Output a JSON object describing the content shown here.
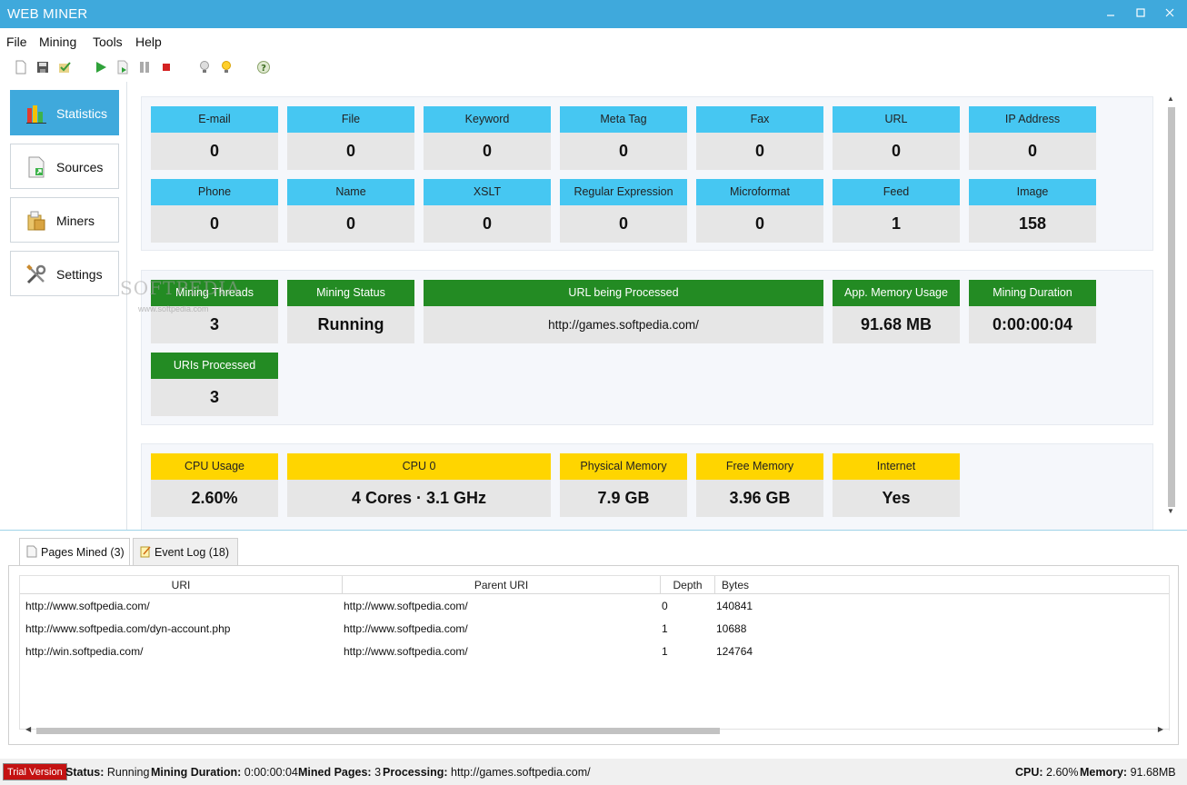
{
  "window": {
    "title": "WEB MINER"
  },
  "menu": [
    "File",
    "Mining",
    "Tools",
    "Help"
  ],
  "toolbar_icons": [
    "new-icon",
    "save-icon",
    "check-icon",
    "play-icon",
    "step-icon",
    "pause-icon",
    "stop-icon",
    "bulb-off-icon",
    "bulb-on-icon",
    "help-icon"
  ],
  "nav": [
    {
      "label": "Statistics",
      "icon": "bar-chart-icon",
      "active": true
    },
    {
      "label": "Sources",
      "icon": "document-icon",
      "active": false
    },
    {
      "label": "Miners",
      "icon": "miners-icon",
      "active": false
    },
    {
      "label": "Settings",
      "icon": "tools-icon",
      "active": false
    }
  ],
  "extracted": [
    {
      "label": "E-mail",
      "value": "0"
    },
    {
      "label": "File",
      "value": "0"
    },
    {
      "label": "Keyword",
      "value": "0"
    },
    {
      "label": "Meta Tag",
      "value": "0"
    },
    {
      "label": "Fax",
      "value": "0"
    },
    {
      "label": "URL",
      "value": "0"
    },
    {
      "label": "IP Address",
      "value": "0"
    },
    {
      "label": "Phone",
      "value": "0"
    },
    {
      "label": "Name",
      "value": "0"
    },
    {
      "label": "XSLT",
      "value": "0"
    },
    {
      "label": "Regular Expression",
      "value": "0"
    },
    {
      "label": "Microformat",
      "value": "0"
    },
    {
      "label": "Feed",
      "value": "1"
    },
    {
      "label": "Image",
      "value": "158"
    }
  ],
  "mining": {
    "threads_label": "Mining Threads",
    "threads_value": "3",
    "status_label": "Mining Status",
    "status_value": "Running",
    "url_label": "URL being Processed",
    "url_value": "http://games.softpedia.com/",
    "memory_label": "App. Memory Usage",
    "memory_value": "91.68 MB",
    "duration_label": "Mining Duration",
    "duration_value": "0:00:00:04",
    "uris_label": "URIs Processed",
    "uris_value": "3"
  },
  "system": {
    "cpu_usage_label": "CPU Usage",
    "cpu_usage_value": "2.60%",
    "cpu0_label": "CPU 0",
    "cpu0_value": "4 Cores · 3.1 GHz",
    "phys_label": "Physical Memory",
    "phys_value": "7.9 GB",
    "free_label": "Free Memory",
    "free_value": "3.96 GB",
    "internet_label": "Internet",
    "internet_value": "Yes"
  },
  "watermark": {
    "brand": "SOFTPEDIA",
    "url": "www.softpedia.com"
  },
  "tabs": [
    {
      "label": "Pages Mined (3)",
      "active": true
    },
    {
      "label": "Event Log (18)",
      "active": false
    }
  ],
  "grid": {
    "columns": [
      "URI",
      "Parent URI",
      "Depth",
      "Bytes"
    ],
    "rows": [
      [
        "http://www.softpedia.com/",
        "http://www.softpedia.com/",
        "0",
        "140841"
      ],
      [
        "http://www.softpedia.com/dyn-account.php",
        "http://www.softpedia.com/",
        "1",
        "10688"
      ],
      [
        "http://win.softpedia.com/",
        "http://www.softpedia.com/",
        "1",
        "124764"
      ]
    ]
  },
  "statusbar": {
    "trial": "Trial Version",
    "status_label": "Status:",
    "status_value": "Running",
    "duration_label": "Mining Duration:",
    "duration_value": "0:00:00:04",
    "pages_label": "Mined Pages:",
    "pages_value": "3",
    "processing_label": "Processing:",
    "processing_value": "http://games.softpedia.com/",
    "cpu_label": "CPU:",
    "cpu_value": "2.60%",
    "memory_label": "Memory:",
    "memory_value": "91.68MB"
  }
}
